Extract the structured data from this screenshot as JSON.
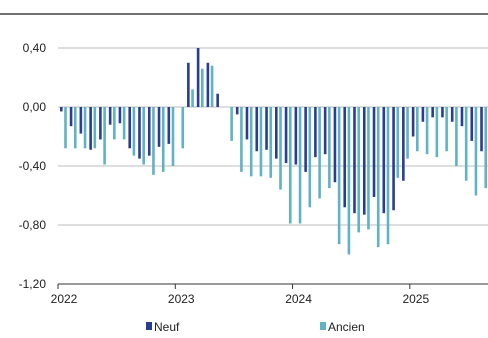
{
  "colors": {
    "neuf": "#2b3d8f",
    "ancien": "#5fb3c4",
    "grid": "#bdbdbd",
    "axis": "#333333",
    "frame_top": "#444444"
  },
  "chart_data": {
    "type": "bar",
    "grid": true,
    "legend_position": "bottom",
    "ylim": [
      -1.2,
      0.4
    ],
    "yticks": [
      "0,40",
      "0,00",
      "-0,40",
      "-0,80",
      "-1,20"
    ],
    "ytick_values": [
      0.4,
      0.0,
      -0.4,
      -0.8,
      -1.2
    ],
    "xtick_labels": [
      "2022",
      "2023",
      "2024",
      "2025"
    ],
    "categories": [
      "2022-01",
      "2022-02",
      "2022-03",
      "2022-04",
      "2022-05",
      "2022-06",
      "2022-07",
      "2022-08",
      "2022-09",
      "2022-10",
      "2022-11",
      "2022-12",
      "2023-01",
      "2023-02",
      "2023-03",
      "2023-04",
      "2023-05",
      "2023-06",
      "2023-07",
      "2023-08",
      "2023-09",
      "2023-10",
      "2023-11",
      "2023-12",
      "2024-01",
      "2024-02",
      "2024-03",
      "2024-04",
      "2024-05",
      "2024-06",
      "2024-07",
      "2024-08",
      "2024-09",
      "2024-10",
      "2024-11",
      "2024-12",
      "2025-01",
      "2025-02",
      "2025-03",
      "2025-04",
      "2025-05",
      "2025-06",
      "2025-07",
      "2025-08"
    ],
    "series": [
      {
        "name": "Neuf",
        "values": [
          -0.03,
          -0.13,
          -0.18,
          -0.29,
          -0.22,
          -0.12,
          -0.11,
          -0.28,
          -0.35,
          -0.33,
          -0.27,
          -0.25,
          0.0,
          0.3,
          0.4,
          0.3,
          0.09,
          0.0,
          -0.05,
          -0.22,
          -0.3,
          -0.29,
          -0.35,
          -0.38,
          -0.39,
          -0.44,
          -0.34,
          -0.32,
          -0.51,
          -0.68,
          -0.72,
          -0.73,
          -0.61,
          -0.72,
          -0.7,
          -0.5,
          -0.2,
          -0.1,
          -0.07,
          -0.07,
          -0.1,
          -0.13,
          -0.23,
          -0.3
        ]
      },
      {
        "name": "Ancien",
        "values": [
          -0.28,
          -0.28,
          -0.28,
          -0.28,
          -0.39,
          -0.22,
          -0.22,
          -0.33,
          -0.39,
          -0.46,
          -0.44,
          -0.4,
          -0.28,
          0.12,
          0.26,
          0.28,
          0.0,
          -0.23,
          -0.44,
          -0.47,
          -0.47,
          -0.48,
          -0.56,
          -0.79,
          -0.79,
          -0.68,
          -0.62,
          -0.55,
          -0.93,
          -1.0,
          -0.85,
          -0.83,
          -0.95,
          -0.93,
          -0.48,
          -0.35,
          -0.3,
          -0.32,
          -0.34,
          -0.3,
          -0.4,
          -0.5,
          -0.6,
          -0.55
        ]
      }
    ]
  }
}
